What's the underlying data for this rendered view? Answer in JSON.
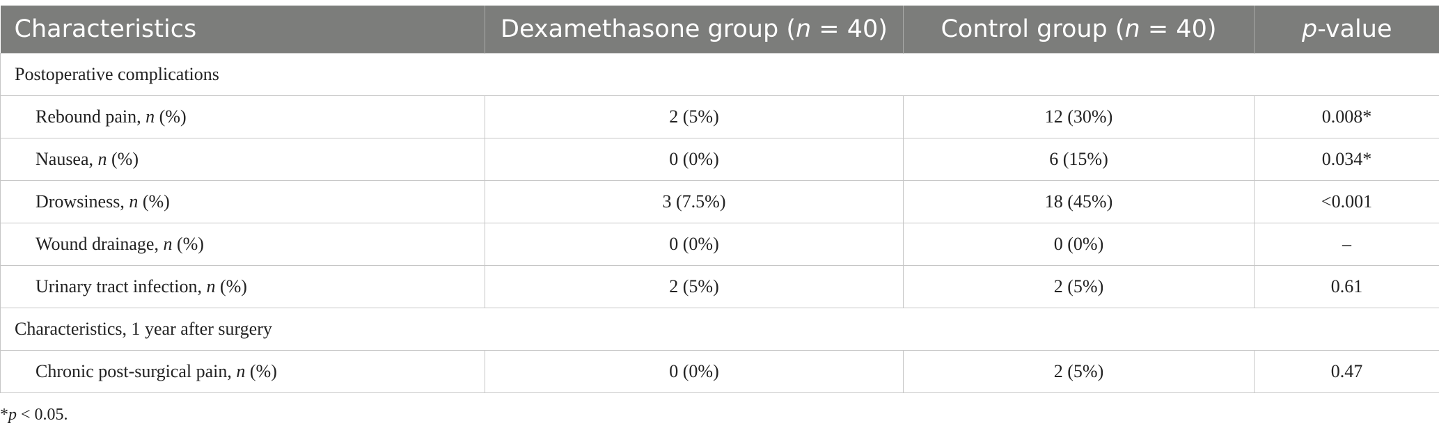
{
  "table": {
    "headers": [
      {
        "pre": "Characteristics",
        "ital": "",
        "post": ""
      },
      {
        "pre": "Dexamethasone group (",
        "ital": "n",
        "post": " = 40)"
      },
      {
        "pre": "Control group (",
        "ital": "n",
        "post": " = 40)"
      },
      {
        "pre": "",
        "ital": "p",
        "post": "-value"
      }
    ],
    "sections": [
      {
        "title": "Postoperative complications",
        "rows": [
          {
            "label": "Rebound pain, ",
            "label_ital": "n",
            "label_post": " (%)",
            "dexamethasone": "2 (5%)",
            "control": "12 (30%)",
            "p_value": "0.008*"
          },
          {
            "label": "Nausea, ",
            "label_ital": "n",
            "label_post": " (%)",
            "dexamethasone": "0 (0%)",
            "control": "6 (15%)",
            "p_value": "0.034*"
          },
          {
            "label": "Drowsiness, ",
            "label_ital": "n",
            "label_post": " (%)",
            "dexamethasone": "3 (7.5%)",
            "control": "18 (45%)",
            "p_value": "<0.001"
          },
          {
            "label": "Wound drainage, ",
            "label_ital": "n",
            "label_post": " (%)",
            "dexamethasone": "0 (0%)",
            "control": "0 (0%)",
            "p_value": "–"
          },
          {
            "label": "Urinary tract infection, ",
            "label_ital": "n",
            "label_post": " (%)",
            "dexamethasone": "2 (5%)",
            "control": "2 (5%)",
            "p_value": "0.61"
          }
        ]
      },
      {
        "title": "Characteristics, 1 year after surgery",
        "rows": [
          {
            "label": "Chronic post-surgical pain, ",
            "label_ital": "n",
            "label_post": " (%)",
            "dexamethasone": "0 (0%)",
            "control": "2 (5%)",
            "p_value": "0.47"
          }
        ]
      }
    ]
  },
  "footnote": {
    "pre": "*",
    "ital": "p",
    "post": " < 0.05."
  }
}
